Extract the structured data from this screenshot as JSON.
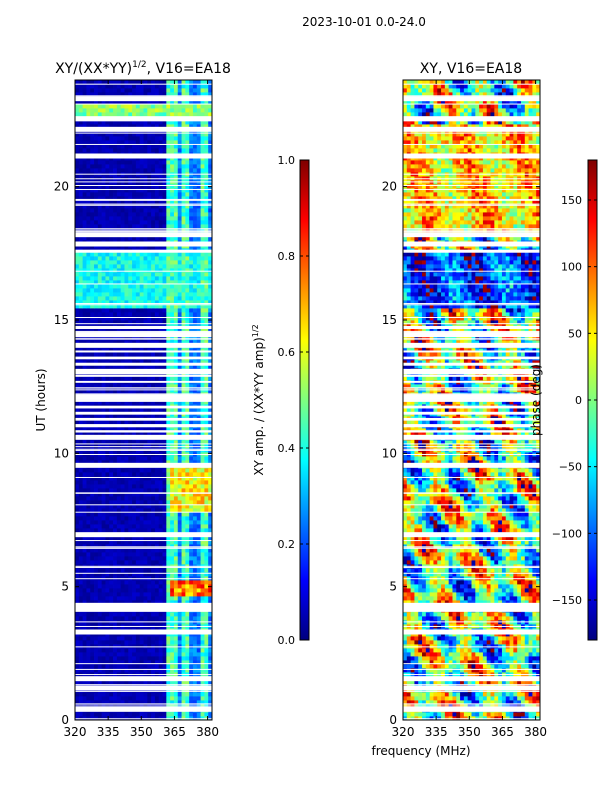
{
  "suptitle": "2023-10-01 0.0-24.0",
  "shared_xlabel": "frequency (MHz)",
  "colormap": [
    "#00007f",
    "#0000ff",
    "#007fff",
    "#00ffff",
    "#7fff7f",
    "#ffff00",
    "#ff7f00",
    "#ff0000",
    "#7f0000"
  ],
  "chart_data": [
    {
      "type": "heatmap",
      "title": "XY/(XX*YY)",
      "title_exponent": "1/2",
      "title_suffix": ", V16=EA18",
      "xlabel": "",
      "ylabel": "UT (hours)",
      "xlim": [
        320,
        382
      ],
      "ylim": [
        0,
        24
      ],
      "x_ticks": [
        320,
        335,
        350,
        365,
        380
      ],
      "x_tick_labels": [
        "320",
        "335",
        "350",
        "365",
        "380"
      ],
      "y_ticks": [
        0,
        5,
        10,
        15,
        20
      ],
      "y_tick_labels": [
        "0",
        "5",
        "10",
        "15",
        "20"
      ],
      "colorbar": {
        "label": "XY amp. / (XX*YY amp)",
        "label_exponent": "1/2",
        "range": [
          0.0,
          1.0
        ],
        "ticks": [
          0.0,
          0.2,
          0.4,
          0.6,
          0.8,
          1.0
        ],
        "tick_labels": [
          "0.0",
          "0.2",
          "0.4",
          "0.6",
          "0.8",
          "1.0"
        ]
      },
      "blank_rows_ut": [
        0.4,
        1.2,
        1.55,
        3.3,
        4.15,
        4.3,
        6.95,
        9.55,
        10.6,
        12.1,
        13.05,
        14.05,
        14.45,
        17.85,
        18.2,
        21.15,
        22.15,
        22.55,
        23.3
      ],
      "dense_blank_ranges_ut": [
        [
          10.6,
          14.9
        ],
        [
          17.6,
          18.05
        ]
      ],
      "features": [
        {
          "desc": "high-amplitude band",
          "ut_range": [
            22.45,
            23.05
          ],
          "freq_range": [
            320,
            382
          ],
          "level": 0.55
        },
        {
          "desc": "enhanced region",
          "ut_range": [
            15.5,
            17.5
          ],
          "freq_range": [
            320,
            382
          ],
          "level": 0.42
        },
        {
          "desc": "peak amplitudes",
          "ut_range": [
            4.7,
            5.3
          ],
          "freq_range": [
            363,
            382
          ],
          "level": 0.82
        },
        {
          "desc": "elevated block",
          "ut_range": [
            7.8,
            9.6
          ],
          "freq_range": [
            363,
            382
          ],
          "level": 0.68
        }
      ]
    },
    {
      "type": "heatmap",
      "title": "XY, V16=EA18",
      "xlabel": "frequency (MHz)",
      "ylabel": "",
      "xlim": [
        320,
        382
      ],
      "ylim": [
        0,
        24
      ],
      "x_ticks": [
        320,
        335,
        350,
        365,
        380
      ],
      "x_tick_labels": [
        "320",
        "335",
        "350",
        "365",
        "380"
      ],
      "y_ticks": [
        0,
        5,
        10,
        15,
        20
      ],
      "y_tick_labels": [
        "0",
        "5",
        "10",
        "15",
        "20"
      ],
      "colorbar": {
        "label": "phase (deg)",
        "range": [
          -180,
          180
        ],
        "ticks": [
          -150,
          -100,
          -50,
          0,
          50,
          100,
          150
        ],
        "tick_labels": [
          "−150",
          "−100",
          "−50",
          "0",
          "50",
          "100",
          "150"
        ]
      },
      "blank_rows_ut": [
        0.4,
        1.2,
        1.55,
        3.3,
        4.15,
        4.3,
        6.95,
        9.55,
        10.6,
        12.1,
        13.05,
        14.05,
        14.45,
        17.85,
        18.2,
        21.15,
        22.15,
        22.55,
        23.3
      ],
      "dense_blank_ranges_ut": [
        [
          10.6,
          14.9
        ],
        [
          17.6,
          18.05
        ]
      ],
      "features": [
        {
          "desc": "warm phase region",
          "ut_range": [
            18.3,
            22.3
          ],
          "freq_range": [
            320,
            382
          ],
          "level": 60
        },
        {
          "desc": "cool phase band",
          "ut_range": [
            15.5,
            17.5
          ],
          "freq_range": [
            320,
            382
          ],
          "level": -110
        },
        {
          "desc": "striped phase wraps",
          "ut_range": [
            0,
            10.5
          ],
          "freq_range": [
            320,
            382
          ],
          "level": 0
        }
      ]
    }
  ]
}
